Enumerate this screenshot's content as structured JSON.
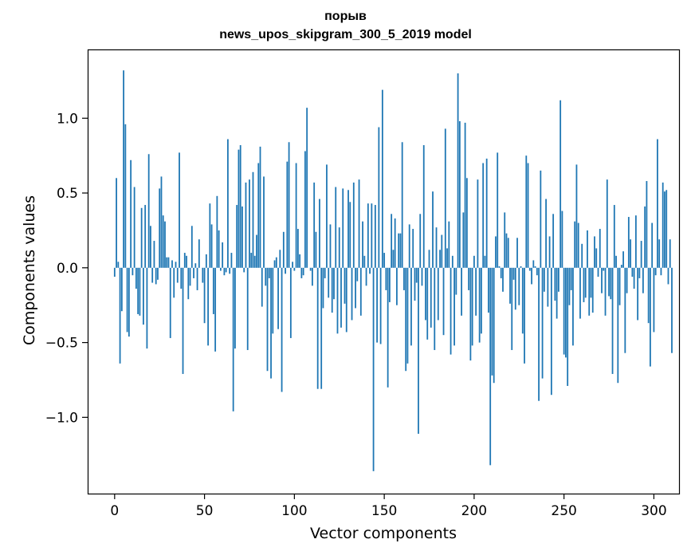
{
  "chart_data": {
    "type": "bar",
    "title": "порыв",
    "subtitle": "news_upos_skipgram_300_5_2019 model",
    "xlabel": "Vector components",
    "ylabel": "Components values",
    "xlim": [
      -15,
      314
    ],
    "ylim": [
      -1.51,
      1.46
    ],
    "xticks": [
      0,
      50,
      100,
      150,
      200,
      250,
      300
    ],
    "xtick_labels": [
      "0",
      "50",
      "100",
      "150",
      "200",
      "250",
      "300"
    ],
    "yticks": [
      -1.0,
      -0.5,
      0.0,
      0.5,
      1.0
    ],
    "ytick_labels": [
      "−1.0",
      "−0.5",
      "0.0",
      "0.5",
      "1.0"
    ],
    "grid": false,
    "color": "#1f77b4",
    "values": [
      -0.06,
      0.6,
      0.04,
      -0.64,
      -0.29,
      1.32,
      0.96,
      -0.43,
      -0.46,
      0.72,
      -0.05,
      0.54,
      -0.14,
      -0.31,
      -0.32,
      0.4,
      -0.38,
      0.42,
      -0.54,
      0.76,
      0.28,
      -0.1,
      0.18,
      -0.11,
      -0.08,
      0.53,
      0.61,
      0.35,
      0.31,
      0.07,
      0.07,
      -0.47,
      0.05,
      -0.2,
      0.04,
      -0.1,
      0.77,
      -0.14,
      -0.71,
      0.1,
      0.08,
      -0.21,
      -0.12,
      0.28,
      -0.07,
      0.03,
      -0.15,
      0.19,
      0.0,
      -0.1,
      -0.37,
      0.09,
      -0.52,
      0.43,
      0.29,
      -0.31,
      -0.56,
      0.48,
      0.25,
      -0.02,
      0.17,
      -0.05,
      -0.03,
      0.86,
      -0.04,
      0.1,
      -0.96,
      -0.54,
      0.42,
      0.79,
      0.82,
      0.41,
      -0.03,
      0.57,
      -0.55,
      0.59,
      0.1,
      0.64,
      0.08,
      0.22,
      0.7,
      0.81,
      -0.26,
      0.61,
      -0.12,
      -0.69,
      -0.07,
      -0.74,
      -0.44,
      0.05,
      0.07,
      -0.41,
      0.12,
      -0.83,
      0.24,
      -0.04,
      0.71,
      0.84,
      -0.47,
      0.04,
      -0.02,
      0.7,
      0.26,
      0.09,
      -0.07,
      -0.05,
      0.78,
      1.07,
      0.0,
      -0.02,
      -0.12,
      0.57,
      0.24,
      -0.81,
      0.46,
      -0.81,
      -0.27,
      -0.07,
      0.69,
      -0.2,
      0.29,
      -0.3,
      -0.21,
      0.54,
      -0.44,
      0.27,
      -0.4,
      0.53,
      -0.24,
      -0.43,
      0.52,
      0.44,
      -0.35,
      0.57,
      -0.27,
      -0.09,
      0.59,
      -0.32,
      0.31,
      0.08,
      -0.12,
      0.43,
      -0.04,
      0.43,
      -1.36,
      0.42,
      -0.5,
      0.94,
      -0.51,
      1.19,
      0.1,
      -0.15,
      -0.8,
      -0.23,
      0.36,
      0.12,
      0.33,
      -0.25,
      0.23,
      0.23,
      0.84,
      -0.15,
      -0.69,
      -0.64,
      0.29,
      -0.52,
      0.26,
      -0.22,
      -0.1,
      -1.11,
      0.36,
      -0.12,
      0.82,
      -0.35,
      -0.48,
      0.12,
      -0.4,
      0.51,
      -0.55,
      0.27,
      -0.35,
      0.12,
      0.22,
      -0.45,
      0.93,
      0.13,
      0.31,
      -0.58,
      0.08,
      -0.52,
      -0.18,
      1.3,
      0.98,
      -0.32,
      0.37,
      0.97,
      0.6,
      -0.15,
      -0.62,
      -0.52,
      0.08,
      -0.32,
      0.59,
      -0.5,
      -0.44,
      0.7,
      0.08,
      0.73,
      -0.3,
      -1.32,
      -0.72,
      -0.77,
      0.21,
      0.77,
      0.01,
      -0.07,
      -0.16,
      0.37,
      0.23,
      0.2,
      -0.24,
      -0.55,
      -0.08,
      -0.28,
      0.2,
      -0.25,
      0.01,
      -0.44,
      -0.64,
      0.75,
      0.7,
      -0.02,
      -0.11,
      0.05,
      0.01,
      -0.05,
      -0.89,
      0.65,
      -0.74,
      -0.16,
      0.46,
      -0.26,
      0.21,
      -0.85,
      0.36,
      -0.22,
      -0.34,
      -0.16,
      1.12,
      0.38,
      -0.58,
      -0.6,
      -0.79,
      -0.25,
      -0.15,
      -0.52,
      0.31,
      0.69,
      0.3,
      -0.34,
      0.16,
      -0.23,
      -0.2,
      0.25,
      -0.32,
      -0.2,
      -0.3,
      0.21,
      0.13,
      -0.06,
      0.26,
      -0.17,
      -0.02,
      -0.32,
      0.59,
      -0.19,
      -0.21,
      -0.71,
      0.42,
      0.08,
      -0.77,
      -0.25,
      0.02,
      0.11,
      -0.57,
      -0.17,
      0.34,
      0.19,
      -0.06,
      -0.14,
      0.35,
      -0.35,
      -0.07,
      0.18,
      -0.17,
      0.41,
      0.58,
      -0.37,
      -0.66,
      0.3,
      -0.43,
      -0.05,
      0.86,
      0.19,
      -0.05,
      0.57,
      0.51,
      0.52,
      -0.11,
      0.19,
      -0.57
    ]
  }
}
